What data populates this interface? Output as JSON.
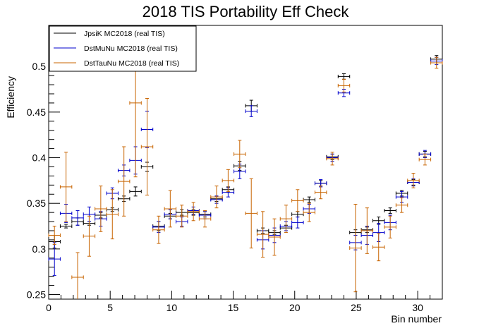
{
  "chart_data": {
    "type": "scatter",
    "title": "2018 TIS Portability Eff Check",
    "xlabel": "Bin number",
    "ylabel": "Efficiency",
    "xlim": [
      0,
      32
    ],
    "ylim": [
      0.245,
      0.545
    ],
    "x_ticks": [
      0,
      5,
      10,
      15,
      20,
      25,
      30
    ],
    "y_ticks": [
      0.25,
      0.3,
      0.35,
      0.4,
      0.45,
      0.5
    ],
    "y_tick_labels": [
      "0.25",
      "0.3",
      "0.35",
      "0.4",
      "0.45",
      "0.5"
    ],
    "legend_position": "top-left",
    "grid": false,
    "colors": {
      "JpsiK": "#000000",
      "DstMuNu": "#0000cc",
      "DstTauNu": "#c86400"
    },
    "series": [
      {
        "name": "JpsiK MC2018 (real TIS)",
        "color": "#000000",
        "offset": 0.0,
        "y": [
          0.308,
          0.325,
          0.33,
          0.328,
          0.337,
          0.343,
          0.355,
          0.363,
          0.39,
          0.325,
          0.336,
          0.34,
          0.34,
          0.338,
          0.355,
          0.365,
          0.391,
          0.457,
          0.32,
          0.318,
          0.323,
          0.338,
          0.354,
          0.372,
          0.401,
          0.489,
          0.318,
          0.321,
          0.331,
          0.342,
          0.361,
          0.373,
          0.404,
          0.508
        ],
        "yerr": [
          0.007,
          0.002,
          0.004,
          0.002,
          0.003,
          0.002,
          0.003,
          0.005,
          0.005,
          0.005,
          0.003,
          0.003,
          0.003,
          0.003,
          0.003,
          0.003,
          0.005,
          0.006,
          0.003,
          0.002,
          0.003,
          0.003,
          0.003,
          0.003,
          0.003,
          0.003,
          0.003,
          0.003,
          0.004,
          0.003,
          0.003,
          0.003,
          0.003,
          0.004
        ]
      },
      {
        "name": "DstMuNu MC2018 (real TIS)",
        "color": "#0000cc",
        "offset": 0.0,
        "y": [
          0.289,
          0.339,
          0.334,
          0.338,
          0.333,
          0.361,
          0.386,
          0.397,
          0.431,
          0.324,
          0.338,
          0.33,
          0.342,
          0.337,
          0.354,
          0.362,
          0.385,
          0.451,
          0.31,
          0.315,
          0.325,
          0.329,
          0.344,
          0.372,
          0.4,
          0.471,
          0.307,
          0.315,
          0.318,
          0.329,
          0.357,
          0.373,
          0.404,
          0.506
        ],
        "yerr": [
          0.018,
          0.01,
          0.008,
          0.008,
          0.008,
          0.006,
          0.006,
          0.015,
          0.02,
          0.006,
          0.005,
          0.005,
          0.004,
          0.004,
          0.004,
          0.005,
          0.008,
          0.006,
          0.01,
          0.008,
          0.005,
          0.006,
          0.005,
          0.004,
          0.004,
          0.004,
          0.008,
          0.01,
          0.01,
          0.008,
          0.006,
          0.004,
          0.004,
          0.004
        ]
      },
      {
        "name": "DstTauNu MC2018 (real TIS)",
        "color": "#c86400",
        "offset": 0.0,
        "y": [
          0.315,
          0.368,
          0.269,
          0.314,
          0.344,
          0.338,
          0.374,
          0.46,
          0.412,
          0.321,
          0.344,
          0.336,
          0.341,
          0.333,
          0.357,
          0.375,
          0.404,
          0.339,
          0.316,
          0.313,
          0.333,
          0.353,
          0.34,
          0.362,
          0.399,
          0.479,
          0.301,
          0.32,
          0.302,
          0.324,
          0.348,
          0.375,
          0.398,
          0.504
        ],
        "yerr": [
          0.01,
          0.038,
          0.027,
          0.022,
          0.025,
          0.027,
          0.038,
          0.081,
          0.053,
          0.015,
          0.02,
          0.012,
          0.01,
          0.009,
          0.012,
          0.012,
          0.015,
          0.038,
          0.025,
          0.02,
          0.015,
          0.012,
          0.01,
          0.007,
          0.007,
          0.007,
          0.048,
          0.025,
          0.015,
          0.012,
          0.008,
          0.008,
          0.006,
          0.006
        ]
      }
    ]
  }
}
